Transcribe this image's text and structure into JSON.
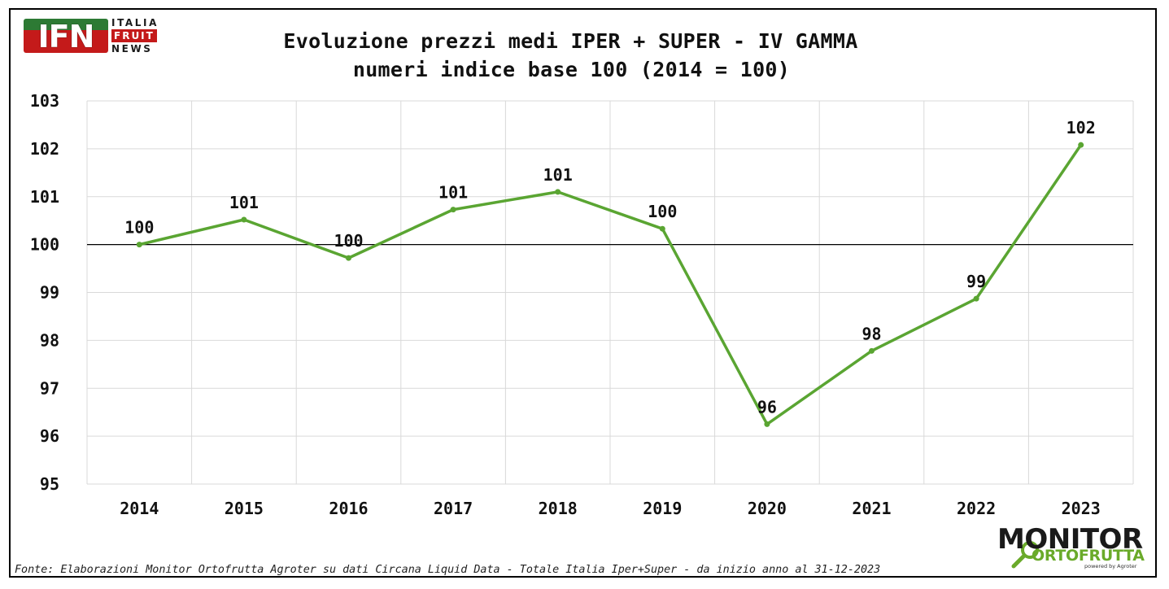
{
  "logo_ifn": {
    "mark": "IFN",
    "line1": "ITALIA",
    "line2": "FRUIT",
    "line3": "NEWS",
    "colors": {
      "green": "#2d7a34",
      "red": "#c41a1a"
    }
  },
  "logo_monitor": {
    "line1": "MONITOR",
    "line2": "ORTOFRUTTA",
    "tagline": "powered by Agroter",
    "colors": {
      "dark": "#1a1a1a",
      "green": "#6aaa2a"
    }
  },
  "source_text": "Fonte: Elaborazioni Monitor Ortofrutta Agroter su dati Circana Liquid Data - Totale Italia Iper+Super - da inizio anno al 31-12-2023",
  "chart_data": {
    "type": "line",
    "title": "Evoluzione prezzi medi IPER + SUPER - IV GAMMA",
    "subtitle": "numeri indice base 100 (2014 = 100)",
    "xlabel": "",
    "ylabel": "",
    "categories": [
      "2014",
      "2015",
      "2016",
      "2017",
      "2018",
      "2019",
      "2020",
      "2021",
      "2022",
      "2023"
    ],
    "series": [
      {
        "color": "#5aa532",
        "values": [
          100.0,
          100.52,
          99.72,
          100.73,
          101.1,
          100.33,
          96.25,
          97.78,
          98.87,
          102.08
        ],
        "labels": [
          "100",
          "101",
          "100",
          "101",
          "101",
          "100",
          "96",
          "98",
          "99",
          "102"
        ]
      }
    ],
    "ylim": [
      95,
      103
    ],
    "yticks": [
      "95",
      "96",
      "97",
      "98",
      "99",
      "100",
      "101",
      "102",
      "103"
    ],
    "reference_line": 100,
    "grid": true,
    "legend": "none"
  }
}
